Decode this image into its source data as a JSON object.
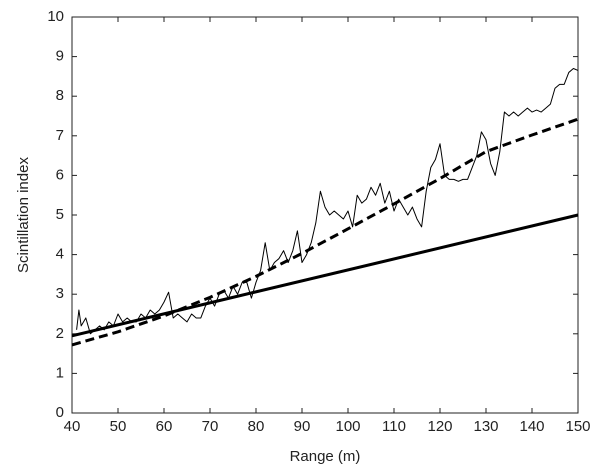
{
  "chart_data": {
    "type": "line",
    "xlabel": "Range (m)",
    "ylabel": "Scintillation index",
    "xlim": [
      40,
      150
    ],
    "xticks": [
      40,
      50,
      60,
      70,
      80,
      90,
      100,
      110,
      120,
      130,
      140,
      150
    ],
    "ylim": [
      0,
      10
    ],
    "yticks": [
      0,
      1,
      2,
      3,
      4,
      5,
      6,
      7,
      8,
      9,
      10
    ],
    "grid": false,
    "series": [
      {
        "color": "#000000",
        "line_style": "solid",
        "width": 1,
        "x": [
          41,
          41.5,
          42,
          43,
          44,
          45,
          46,
          47,
          48,
          49,
          50,
          51,
          52,
          53,
          54,
          55,
          56,
          57,
          58,
          59,
          60,
          61,
          62,
          63,
          64,
          65,
          66,
          67,
          68,
          69,
          70,
          71,
          72,
          73,
          74,
          75,
          76,
          77,
          78,
          79,
          80,
          81,
          82,
          83,
          84,
          85,
          86,
          87,
          88,
          89,
          90,
          91,
          92,
          93,
          94,
          95,
          96,
          97,
          98,
          99,
          100,
          101,
          102,
          103,
          104,
          105,
          106,
          107,
          108,
          109,
          110,
          111,
          112,
          113,
          114,
          115,
          116,
          117,
          118,
          119,
          120,
          121,
          122,
          123,
          124,
          125,
          126,
          127,
          128,
          129,
          130,
          131,
          132,
          133,
          134,
          135,
          136,
          137,
          138,
          139,
          140,
          141,
          142,
          143,
          144,
          145,
          146,
          147,
          148,
          149,
          150
        ],
        "values": [
          2.1,
          2.6,
          2.2,
          2.4,
          2.0,
          2.1,
          2.2,
          2.1,
          2.3,
          2.2,
          2.5,
          2.3,
          2.4,
          2.3,
          2.3,
          2.5,
          2.4,
          2.6,
          2.5,
          2.6,
          2.8,
          3.05,
          2.4,
          2.5,
          2.4,
          2.3,
          2.5,
          2.4,
          2.4,
          2.7,
          2.9,
          2.7,
          3.0,
          3.1,
          2.9,
          3.2,
          3.0,
          3.3,
          3.3,
          2.9,
          3.3,
          3.6,
          4.3,
          3.6,
          3.8,
          3.9,
          4.1,
          3.8,
          4.1,
          4.6,
          3.8,
          4.0,
          4.3,
          4.8,
          5.6,
          5.2,
          5.0,
          5.1,
          5.0,
          4.9,
          5.1,
          4.7,
          5.5,
          5.3,
          5.4,
          5.7,
          5.5,
          5.8,
          5.3,
          5.6,
          5.1,
          5.4,
          5.2,
          5.0,
          5.2,
          4.9,
          4.7,
          5.6,
          6.2,
          6.4,
          6.8,
          6.0,
          5.9,
          5.9,
          5.85,
          5.9,
          5.9,
          6.2,
          6.5,
          7.1,
          6.9,
          6.3,
          6.0,
          6.6,
          7.6,
          7.5,
          7.6,
          7.5,
          7.6,
          7.7,
          7.6,
          7.65,
          7.6,
          7.7,
          7.8,
          8.2,
          8.3,
          8.3,
          8.6,
          8.7,
          8.65
        ]
      },
      {
        "color": "#000000",
        "line_style": "solid",
        "width": 3,
        "x": [
          40,
          150
        ],
        "values": [
          1.95,
          5.0
        ]
      },
      {
        "color": "#000000",
        "line_style": "dashed",
        "width": 3,
        "x": [
          40,
          50,
          60,
          70,
          80,
          90,
          100,
          110,
          120,
          130,
          140,
          150
        ],
        "values": [
          1.72,
          2.05,
          2.45,
          2.92,
          3.45,
          4.03,
          4.65,
          5.28,
          5.92,
          6.6,
          7.02,
          7.42
        ]
      }
    ]
  }
}
